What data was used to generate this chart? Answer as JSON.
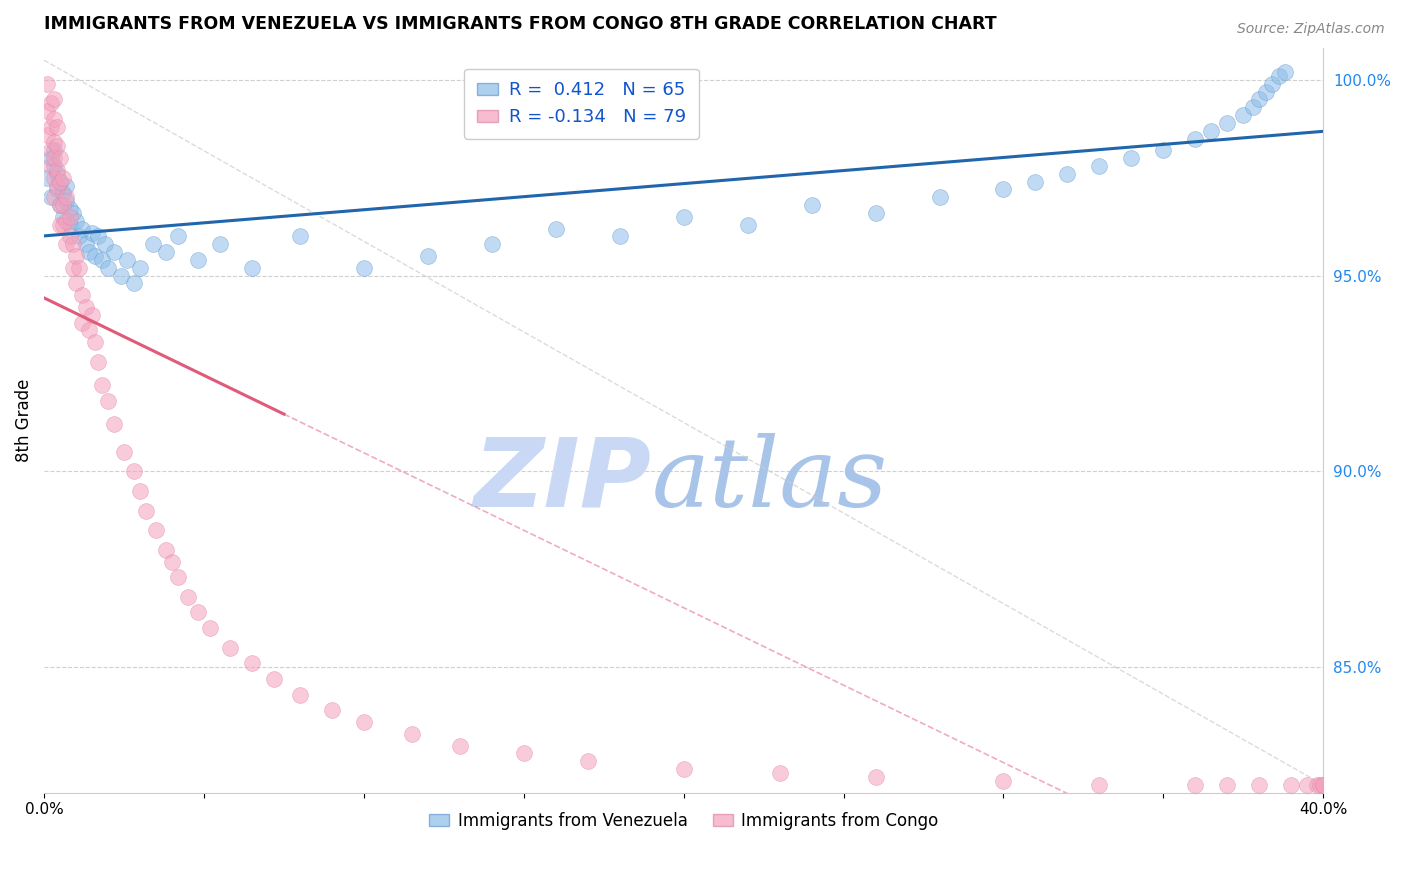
{
  "title": "IMMIGRANTS FROM VENEZUELA VS IMMIGRANTS FROM CONGO 8TH GRADE CORRELATION CHART",
  "source": "Source: ZipAtlas.com",
  "ylabel": "8th Grade",
  "xlim": [
    0.0,
    0.4
  ],
  "ylim": [
    0.818,
    1.008
  ],
  "xticks": [
    0.0,
    0.05,
    0.1,
    0.15,
    0.2,
    0.25,
    0.3,
    0.35,
    0.4
  ],
  "xticklabels": [
    "0.0%",
    "",
    "",
    "",
    "",
    "",
    "",
    "",
    "40.0%"
  ],
  "yticks": [
    0.85,
    0.9,
    0.95,
    1.0
  ],
  "yticklabels": [
    "85.0%",
    "90.0%",
    "95.0%",
    "100.0%"
  ],
  "legend_labels": [
    "Immigrants from Venezuela",
    "Immigrants from Congo"
  ],
  "R_venezuela": "0.412",
  "N_venezuela": "65",
  "R_congo": "-0.134",
  "N_congo": "79",
  "blue_color": "#8bbde8",
  "pink_color": "#f4a0bc",
  "trend_blue": "#2166ac",
  "trend_pink": "#e05a7a",
  "watermark_zip_color": "#c8d8f5",
  "watermark_atlas_color": "#a8c4e8",
  "grid_color": "#d0d0d0",
  "venezuela_x": [
    0.001,
    0.002,
    0.002,
    0.003,
    0.003,
    0.004,
    0.004,
    0.005,
    0.005,
    0.006,
    0.006,
    0.007,
    0.007,
    0.008,
    0.008,
    0.009,
    0.01,
    0.011,
    0.012,
    0.013,
    0.014,
    0.015,
    0.016,
    0.017,
    0.018,
    0.019,
    0.02,
    0.022,
    0.024,
    0.026,
    0.028,
    0.03,
    0.034,
    0.038,
    0.042,
    0.048,
    0.055,
    0.065,
    0.08,
    0.1,
    0.12,
    0.14,
    0.16,
    0.18,
    0.2,
    0.22,
    0.24,
    0.26,
    0.28,
    0.3,
    0.31,
    0.32,
    0.33,
    0.34,
    0.35,
    0.36,
    0.365,
    0.37,
    0.375,
    0.378,
    0.38,
    0.382,
    0.384,
    0.386,
    0.388
  ],
  "venezuela_y": [
    0.975,
    0.98,
    0.97,
    0.982,
    0.978,
    0.976,
    0.972,
    0.974,
    0.968,
    0.971,
    0.965,
    0.973,
    0.969,
    0.967,
    0.963,
    0.966,
    0.964,
    0.96,
    0.962,
    0.958,
    0.956,
    0.961,
    0.955,
    0.96,
    0.954,
    0.958,
    0.952,
    0.956,
    0.95,
    0.954,
    0.948,
    0.952,
    0.958,
    0.956,
    0.96,
    0.954,
    0.958,
    0.952,
    0.96,
    0.952,
    0.955,
    0.958,
    0.962,
    0.96,
    0.965,
    0.963,
    0.968,
    0.966,
    0.97,
    0.972,
    0.974,
    0.976,
    0.978,
    0.98,
    0.982,
    0.985,
    0.987,
    0.989,
    0.991,
    0.993,
    0.995,
    0.997,
    0.999,
    1.001,
    1.002
  ],
  "congo_x": [
    0.001,
    0.001,
    0.001,
    0.002,
    0.002,
    0.002,
    0.002,
    0.003,
    0.003,
    0.003,
    0.003,
    0.003,
    0.003,
    0.004,
    0.004,
    0.004,
    0.004,
    0.005,
    0.005,
    0.005,
    0.005,
    0.006,
    0.006,
    0.006,
    0.007,
    0.007,
    0.007,
    0.008,
    0.008,
    0.009,
    0.009,
    0.01,
    0.01,
    0.011,
    0.012,
    0.012,
    0.013,
    0.014,
    0.015,
    0.016,
    0.017,
    0.018,
    0.02,
    0.022,
    0.025,
    0.028,
    0.03,
    0.032,
    0.035,
    0.038,
    0.04,
    0.042,
    0.045,
    0.048,
    0.052,
    0.058,
    0.065,
    0.072,
    0.08,
    0.09,
    0.1,
    0.115,
    0.13,
    0.15,
    0.17,
    0.2,
    0.23,
    0.26,
    0.3,
    0.33,
    0.36,
    0.37,
    0.38,
    0.39,
    0.395,
    0.398,
    0.399,
    0.4,
    0.4
  ],
  "congo_y": [
    0.999,
    0.992,
    0.986,
    0.994,
    0.988,
    0.982,
    0.978,
    0.995,
    0.99,
    0.984,
    0.98,
    0.975,
    0.97,
    0.988,
    0.983,
    0.977,
    0.973,
    0.98,
    0.974,
    0.968,
    0.963,
    0.975,
    0.968,
    0.963,
    0.97,
    0.964,
    0.958,
    0.965,
    0.96,
    0.958,
    0.952,
    0.955,
    0.948,
    0.952,
    0.945,
    0.938,
    0.942,
    0.936,
    0.94,
    0.933,
    0.928,
    0.922,
    0.918,
    0.912,
    0.905,
    0.9,
    0.895,
    0.89,
    0.885,
    0.88,
    0.877,
    0.873,
    0.868,
    0.864,
    0.86,
    0.855,
    0.851,
    0.847,
    0.843,
    0.839,
    0.836,
    0.833,
    0.83,
    0.828,
    0.826,
    0.824,
    0.823,
    0.822,
    0.821,
    0.82,
    0.82,
    0.82,
    0.82,
    0.82,
    0.82,
    0.82,
    0.82,
    0.82,
    0.82
  ]
}
